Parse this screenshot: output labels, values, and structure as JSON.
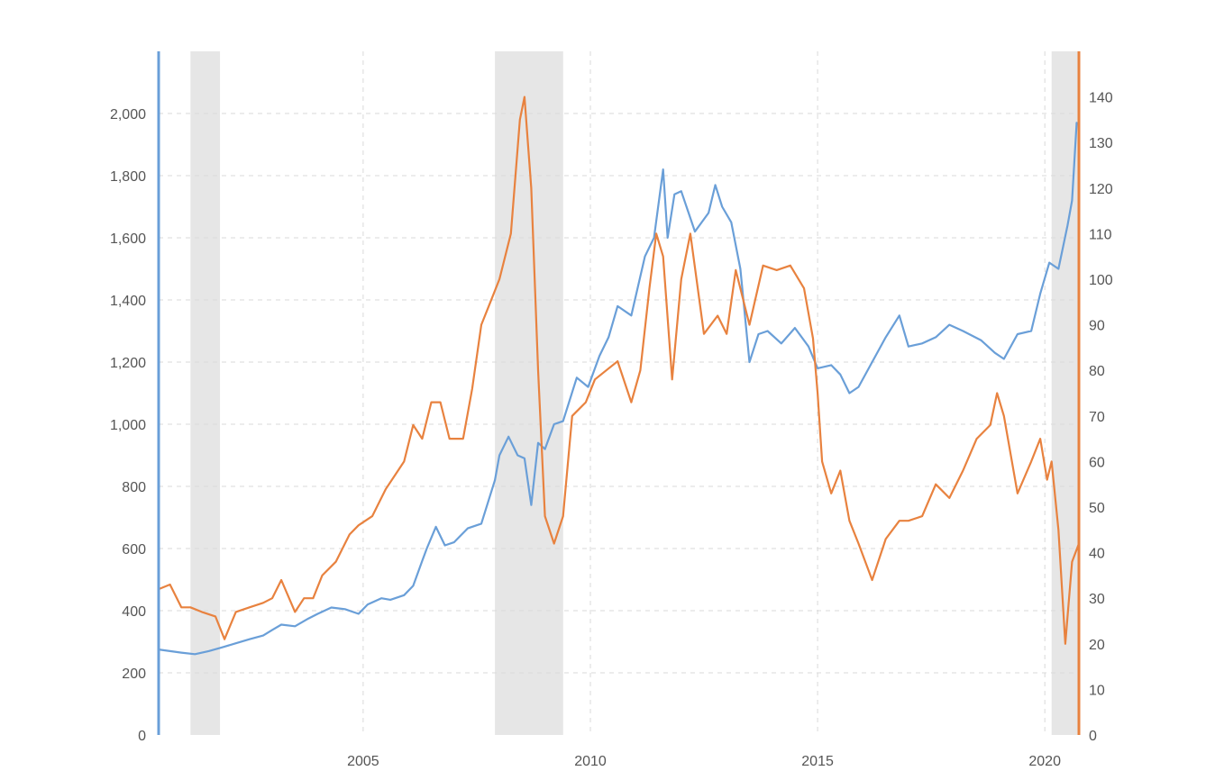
{
  "chart_data": {
    "type": "line",
    "title": "",
    "xlabel": "",
    "ylabel": "",
    "y2label": "",
    "grid": true,
    "legend": "none",
    "xlim": [
      2000.5,
      2020.75
    ],
    "ylim": [
      0,
      2200
    ],
    "y2lim": [
      0,
      150
    ],
    "x_ticks": [
      2005,
      2010,
      2015,
      2020
    ],
    "x_tick_labels": [
      "2005",
      "2010",
      "2015",
      "2020"
    ],
    "y_ticks": [
      0,
      200,
      400,
      600,
      800,
      1000,
      1200,
      1400,
      1600,
      1800,
      2000
    ],
    "y_tick_labels": [
      "0",
      "200",
      "400",
      "600",
      "800",
      "1,000",
      "1,200",
      "1,400",
      "1,600",
      "1,800",
      "2,000"
    ],
    "y2_ticks": [
      0,
      10,
      20,
      30,
      40,
      50,
      60,
      70,
      80,
      90,
      100,
      110,
      120,
      130,
      140
    ],
    "y2_tick_labels": [
      "0",
      "10",
      "20",
      "30",
      "40",
      "50",
      "60",
      "70",
      "80",
      "90",
      "100",
      "110",
      "120",
      "130",
      "140"
    ],
    "recession_bands": [
      [
        2001.2,
        2001.85
      ],
      [
        2007.9,
        2009.4
      ],
      [
        2020.15,
        2020.75
      ]
    ],
    "colors": {
      "left_series": "#6a9fd8",
      "right_series": "#e8823f",
      "band": "#e6e6e6",
      "grid": "#d9d9d9",
      "tick_text": "#555555"
    },
    "series": [
      {
        "axis": "left",
        "color": "#6a9fd8",
        "x": [
          2000.5,
          2000.75,
          2001.0,
          2001.3,
          2001.6,
          2001.9,
          2002.2,
          2002.5,
          2002.8,
          2003.0,
          2003.2,
          2003.5,
          2003.8,
          2004.0,
          2004.3,
          2004.6,
          2004.9,
          2005.1,
          2005.4,
          2005.6,
          2005.9,
          2006.1,
          2006.3,
          2006.4,
          2006.6,
          2006.8,
          2007.0,
          2007.3,
          2007.6,
          2007.9,
          2008.0,
          2008.2,
          2008.4,
          2008.55,
          2008.7,
          2008.85,
          2009.0,
          2009.2,
          2009.4,
          2009.7,
          2009.95,
          2010.2,
          2010.4,
          2010.6,
          2010.9,
          2011.2,
          2011.4,
          2011.6,
          2011.7,
          2011.85,
          2012.0,
          2012.3,
          2012.6,
          2012.75,
          2012.9,
          2013.1,
          2013.3,
          2013.5,
          2013.7,
          2013.9,
          2014.2,
          2014.5,
          2014.8,
          2015.0,
          2015.3,
          2015.5,
          2015.7,
          2015.9,
          2016.2,
          2016.5,
          2016.8,
          2017.0,
          2017.3,
          2017.6,
          2017.9,
          2018.2,
          2018.6,
          2018.9,
          2019.1,
          2019.4,
          2019.7,
          2019.9,
          2020.1,
          2020.3,
          2020.5,
          2020.6,
          2020.7
        ],
        "y": [
          275,
          270,
          265,
          260,
          270,
          282,
          295,
          308,
          320,
          338,
          355,
          350,
          375,
          390,
          410,
          405,
          390,
          420,
          440,
          435,
          450,
          480,
          560,
          600,
          670,
          610,
          620,
          665,
          680,
          820,
          900,
          960,
          900,
          890,
          740,
          940,
          920,
          1000,
          1010,
          1150,
          1120,
          1220,
          1280,
          1380,
          1350,
          1540,
          1600,
          1820,
          1600,
          1740,
          1750,
          1620,
          1680,
          1770,
          1700,
          1650,
          1500,
          1200,
          1290,
          1300,
          1260,
          1310,
          1250,
          1180,
          1190,
          1160,
          1100,
          1120,
          1200,
          1280,
          1350,
          1250,
          1260,
          1280,
          1320,
          1300,
          1270,
          1230,
          1210,
          1290,
          1300,
          1420,
          1520,
          1500,
          1640,
          1720,
          1970
        ]
      },
      {
        "axis": "right",
        "color": "#e8823f",
        "x": [
          2000.5,
          2000.75,
          2001.0,
          2001.2,
          2001.45,
          2001.75,
          2001.95,
          2002.2,
          2002.5,
          2002.8,
          2003.0,
          2003.2,
          2003.5,
          2003.7,
          2003.9,
          2004.1,
          2004.4,
          2004.7,
          2004.9,
          2005.2,
          2005.5,
          2005.7,
          2005.9,
          2006.1,
          2006.3,
          2006.5,
          2006.7,
          2006.9,
          2007.2,
          2007.4,
          2007.6,
          2007.8,
          2008.0,
          2008.25,
          2008.45,
          2008.55,
          2008.7,
          2008.85,
          2009.0,
          2009.2,
          2009.4,
          2009.6,
          2009.9,
          2010.1,
          2010.35,
          2010.6,
          2010.9,
          2011.1,
          2011.3,
          2011.45,
          2011.6,
          2011.8,
          2012.0,
          2012.2,
          2012.5,
          2012.8,
          2013.0,
          2013.2,
          2013.5,
          2013.8,
          2014.1,
          2014.4,
          2014.7,
          2014.9,
          2015.0,
          2015.1,
          2015.3,
          2015.5,
          2015.7,
          2015.9,
          2016.2,
          2016.5,
          2016.8,
          2017.0,
          2017.3,
          2017.6,
          2017.9,
          2018.2,
          2018.5,
          2018.8,
          2018.95,
          2019.1,
          2019.4,
          2019.7,
          2019.9,
          2020.05,
          2020.15,
          2020.3,
          2020.45,
          2020.6,
          2020.75
        ],
        "y": [
          32,
          33,
          28,
          28,
          27,
          26,
          21,
          27,
          28,
          29,
          30,
          34,
          27,
          30,
          30,
          35,
          38,
          44,
          46,
          48,
          54,
          57,
          60,
          68,
          65,
          73,
          73,
          65,
          65,
          76,
          90,
          95,
          100,
          110,
          135,
          140,
          120,
          80,
          48,
          42,
          48,
          70,
          73,
          78,
          80,
          82,
          73,
          80,
          98,
          110,
          105,
          78,
          100,
          110,
          88,
          92,
          88,
          102,
          90,
          103,
          102,
          103,
          98,
          87,
          75,
          60,
          53,
          58,
          47,
          42,
          34,
          43,
          47,
          47,
          48,
          55,
          52,
          58,
          65,
          68,
          75,
          70,
          53,
          60,
          65,
          56,
          60,
          45,
          20,
          38,
          42
        ]
      }
    ]
  }
}
